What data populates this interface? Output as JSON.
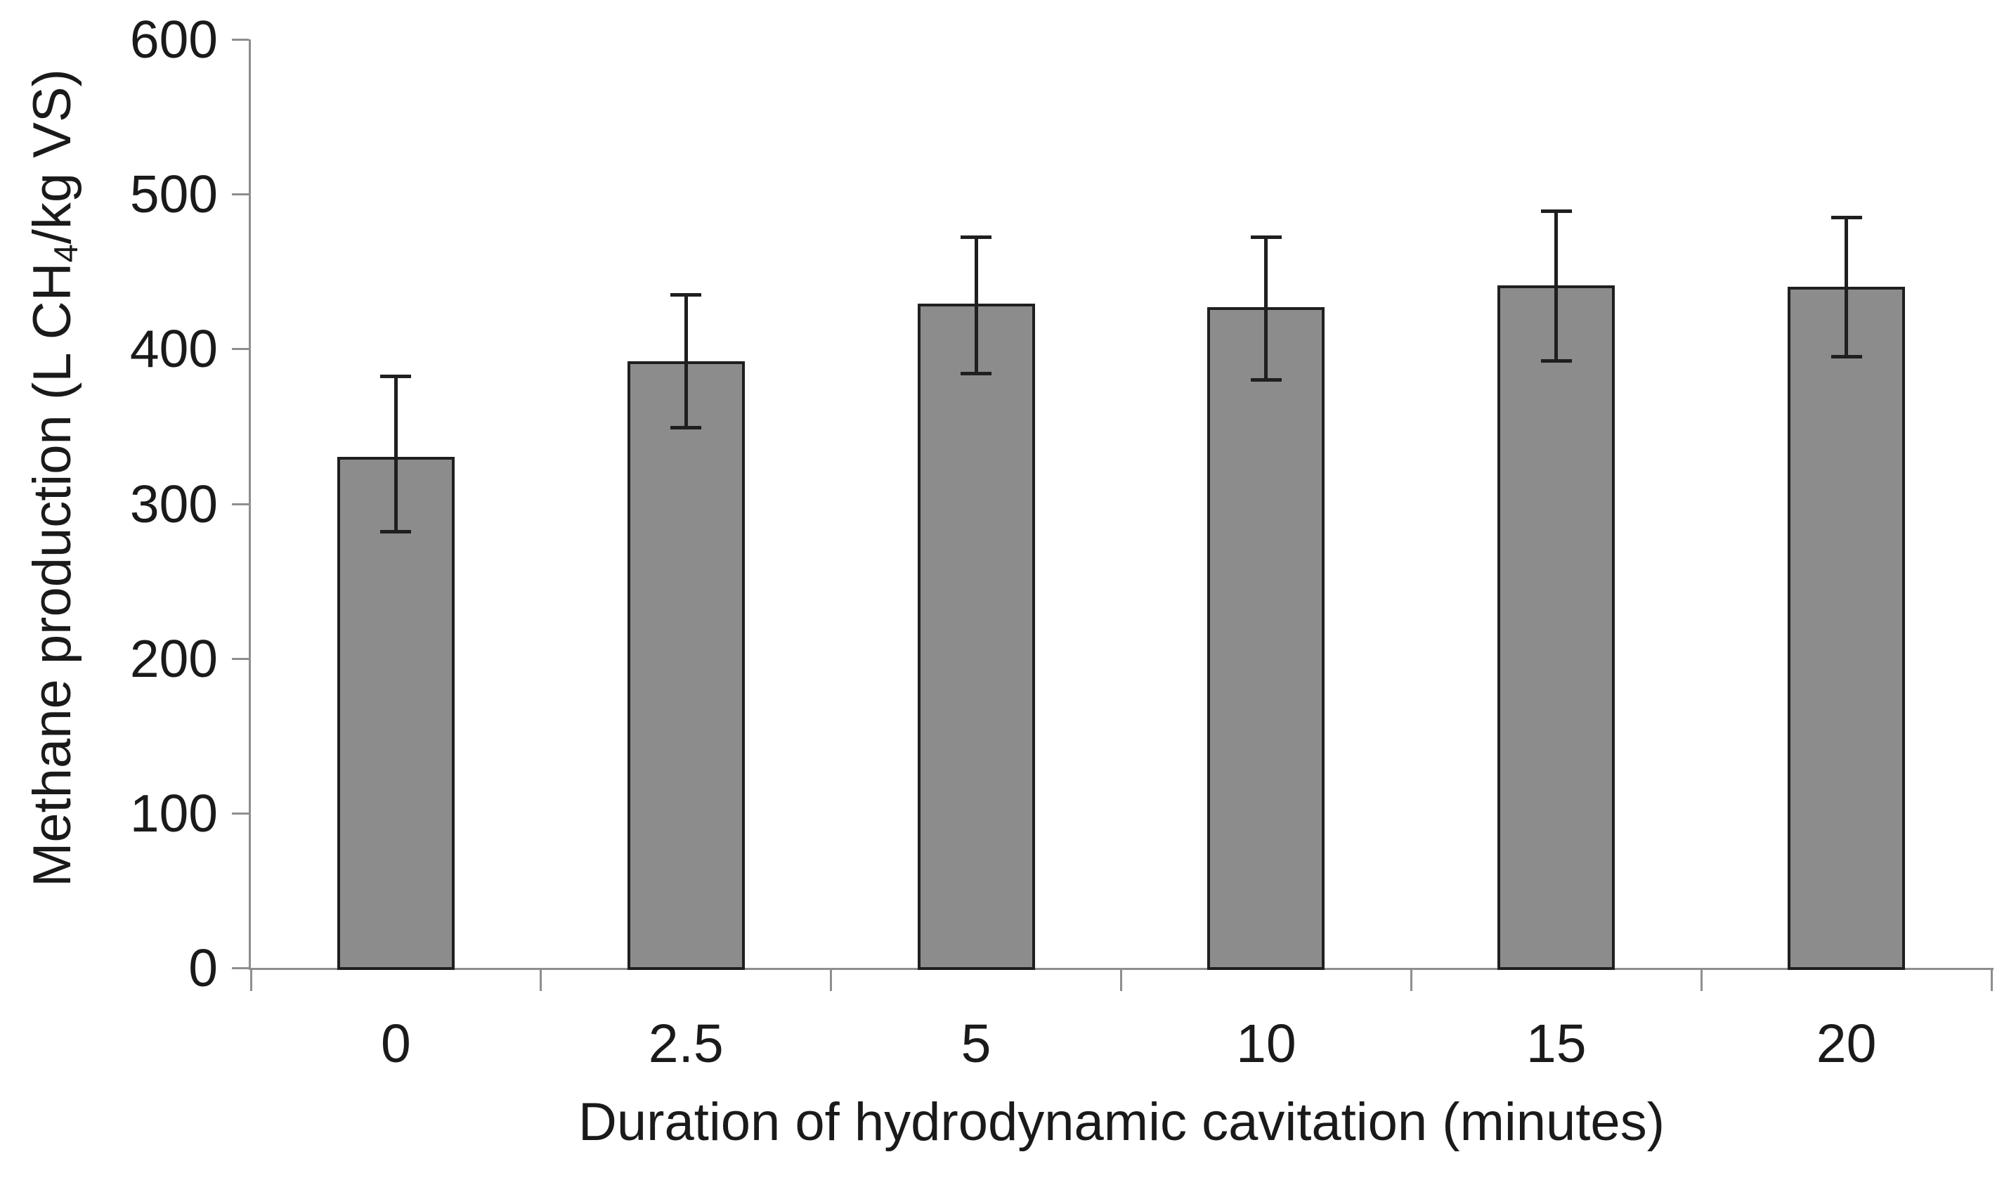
{
  "chart_data": {
    "type": "bar",
    "title": "",
    "xlabel": "Duration of hydrodynamic cavitation (minutes)",
    "ylabel": {
      "prefix": "Methane production (L CH",
      "subscript": "4",
      "suffix": "/kg VS)"
    },
    "categories": [
      "0",
      "2.5",
      "5",
      "10",
      "15",
      "20"
    ],
    "values": [
      330,
      392,
      429,
      427,
      441,
      440
    ],
    "error_plus": [
      52,
      43,
      43,
      45,
      48,
      45
    ],
    "error_minus": [
      48,
      43,
      45,
      47,
      49,
      45
    ],
    "yticks": [
      0,
      100,
      200,
      300,
      400,
      500,
      600
    ],
    "ylim": [
      0,
      600
    ],
    "grid": false,
    "legend": false,
    "colors": {
      "bar_fill": "#8C8C8C",
      "bar_border": "#1F1F1F",
      "error_bar": "#1F1F1F",
      "axis_line": "#8E8E8E",
      "text": "#1A1A1A"
    }
  }
}
